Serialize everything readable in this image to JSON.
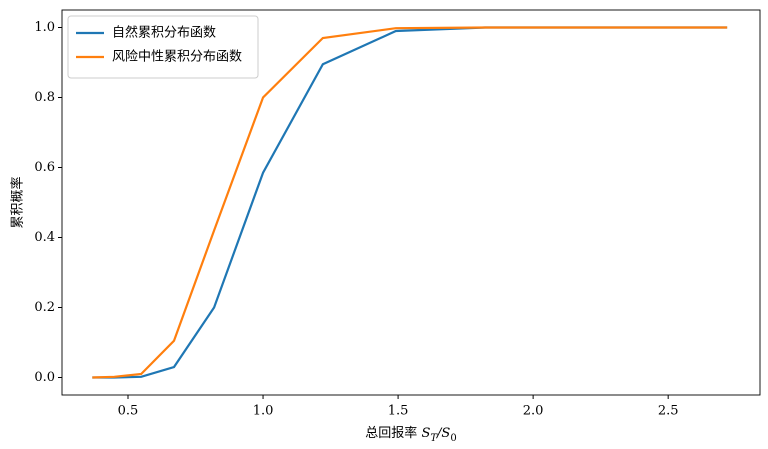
{
  "chart_data": {
    "type": "line",
    "x_label": [
      {
        "text": "总回报率 "
      },
      {
        "text": "S",
        "italic": true
      },
      {
        "text": "T",
        "italic": true,
        "sub": true
      },
      {
        "text": "/",
        "italic": true
      },
      {
        "text": "S",
        "italic": true
      },
      {
        "text": "0",
        "sub": true
      }
    ],
    "y_label": "累积概率",
    "x": [
      0.3679,
      0.4493,
      0.5488,
      0.6703,
      0.8187,
      1.0,
      1.2214,
      1.4918,
      1.8221,
      2.2255,
      2.7183
    ],
    "series": [
      {
        "name": "自然累积分布函数",
        "color": "#1f77b4",
        "values": [
          0,
          0,
          0.002,
          0.03,
          0.2,
          0.585,
          0.895,
          0.99,
          1.0,
          1.0,
          1.0
        ]
      },
      {
        "name": "风险中性累积分布函数",
        "color": "#ff7f0e",
        "values": [
          0,
          0.002,
          0.01,
          0.105,
          0.42,
          0.8,
          0.97,
          0.998,
          1.0,
          1.0,
          1.0
        ]
      }
    ],
    "xlim": [
      0.2556,
      2.84
    ],
    "ylim": [
      -0.05,
      1.05
    ],
    "xticks": [
      0.5,
      {
        "value": 1,
        "label": "1.0"
      },
      1.5,
      {
        "value": 2,
        "label": "2.0"
      },
      2.5
    ],
    "yticks": [
      {
        "value": 0,
        "label": "0.0"
      },
      0.2,
      0.4,
      0.6,
      0.8,
      {
        "value": 1,
        "label": "1.0"
      }
    ],
    "legend": "upper-left",
    "grid": false
  }
}
